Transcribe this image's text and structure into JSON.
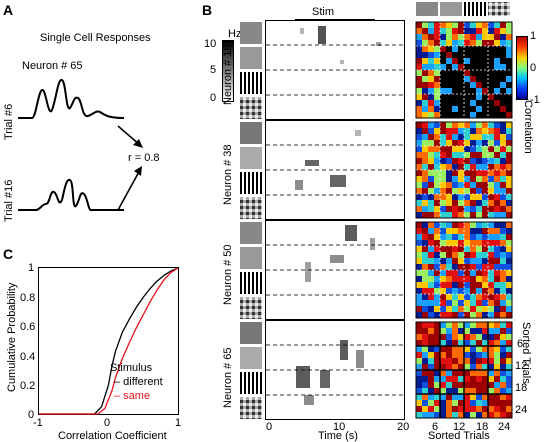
{
  "panel_a": {
    "letter": "A",
    "title": "Single Cell Responses",
    "neuron_label": "Neuron # 65",
    "trial_top": "Trial #6",
    "trial_bottom": "Trial #16",
    "r_label": "r = 0.8"
  },
  "panel_b": {
    "letter": "B",
    "stim_label": "Stim",
    "colorbar": {
      "unit": "Hz",
      "ticks": [
        "10",
        "5",
        "0"
      ]
    },
    "neurons": [
      "Neuron # 18",
      "Neuron # 38",
      "Neuron # 50",
      "Neuron # 65"
    ],
    "time_axis": {
      "label": "Time (s)",
      "ticks": [
        "0",
        "10",
        "20"
      ]
    },
    "corr_colorbar": {
      "label": "Correlation",
      "ticks": [
        "1",
        "0",
        "-1"
      ]
    },
    "sorted_trials_x": {
      "label": "Sorted Trials",
      "ticks": [
        "6",
        "12",
        "18",
        "24"
      ]
    },
    "sorted_trials_y": {
      "label": "Sorted Trials",
      "ticks": [
        "6",
        "12",
        "18",
        "24"
      ]
    }
  },
  "panel_c": {
    "letter": "C",
    "chart_data": {
      "type": "line",
      "xlabel": "Correlation Coefficient",
      "ylabel": "Cumulative Probability",
      "xlim": [
        -1,
        1
      ],
      "ylim": [
        0,
        1
      ],
      "xticks": [
        "-1",
        "0",
        "1"
      ],
      "yticks": [
        "0",
        "0.2",
        "0.4",
        "0.6",
        "0.8",
        "1"
      ],
      "legend_title": "Stimulus",
      "series": [
        {
          "name": "– different",
          "color": "#000000",
          "x": [
            -1,
            -0.2,
            -0.1,
            0.0,
            0.05,
            0.1,
            0.2,
            0.3,
            0.4,
            0.5,
            0.6,
            0.7,
            0.8,
            0.9,
            1.0
          ],
          "y": [
            0,
            0.0,
            0.05,
            0.2,
            0.33,
            0.43,
            0.56,
            0.65,
            0.73,
            0.8,
            0.86,
            0.91,
            0.95,
            0.98,
            1.0
          ]
        },
        {
          "name": "– same",
          "color": "#e8141c",
          "x": [
            -1,
            -0.15,
            -0.05,
            0.05,
            0.1,
            0.2,
            0.3,
            0.4,
            0.5,
            0.6,
            0.7,
            0.8,
            0.9,
            1.0
          ],
          "y": [
            0,
            0.0,
            0.04,
            0.16,
            0.25,
            0.38,
            0.49,
            0.59,
            0.68,
            0.77,
            0.85,
            0.92,
            0.97,
            1.0
          ]
        }
      ]
    }
  }
}
